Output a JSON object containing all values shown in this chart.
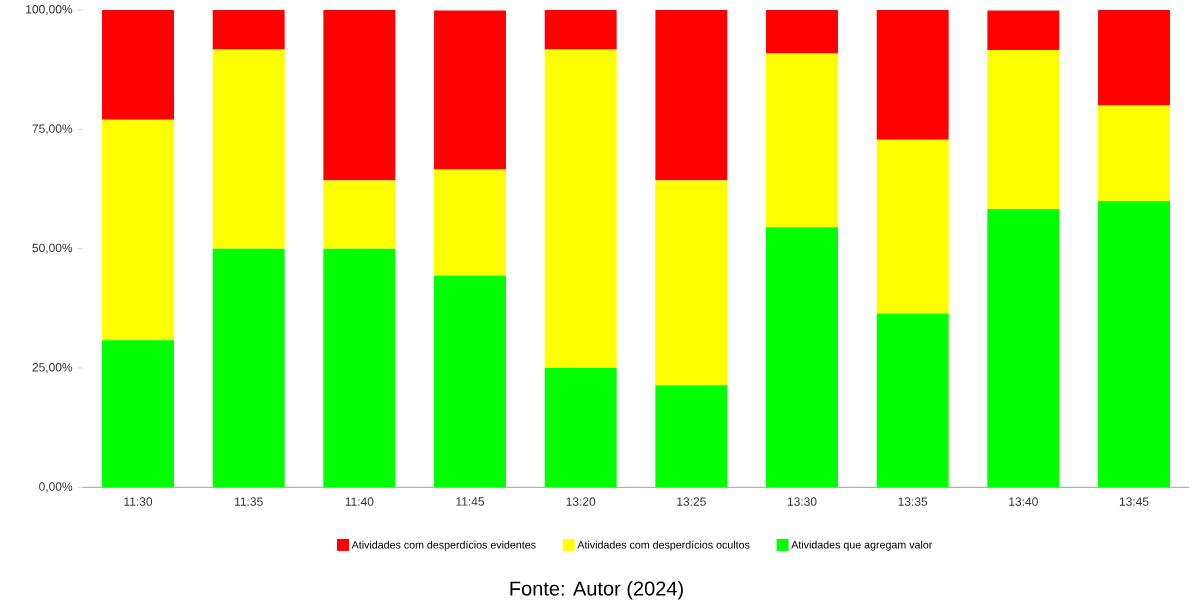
{
  "chart_data": {
    "type": "bar",
    "stacked": true,
    "categories": [
      "11:30",
      "11:35",
      "11:40",
      "11:45",
      "13:20",
      "13:25",
      "13:30",
      "13:35",
      "13:40",
      "13:45"
    ],
    "series": [
      {
        "name": "Atividades que agregam valor",
        "color": "#00ff00",
        "values": [
          30.8,
          50,
          50,
          44.4,
          25,
          21.4,
          54.5,
          36.4,
          58.3,
          60
        ]
      },
      {
        "name": "Atividades com desperdícios ocultos",
        "color": "#ffff00",
        "values": [
          46.2,
          41.7,
          14.3,
          22.2,
          66.7,
          42.9,
          36.4,
          36.4,
          33.3,
          20
        ]
      },
      {
        "name": "Atividades com desperdícios evidentes",
        "color": "#ff0000",
        "values": [
          23.1,
          8.3,
          35.7,
          33.3,
          8.3,
          35.7,
          9.1,
          27.3,
          8.3,
          20
        ]
      }
    ],
    "ylim": [
      0,
      100
    ],
    "yticks": [
      {
        "value": 0,
        "label": "0,00%"
      },
      {
        "value": 25,
        "label": "25,00%"
      },
      {
        "value": 50,
        "label": "50,00%"
      },
      {
        "value": 75,
        "label": "75,00%"
      },
      {
        "value": 100,
        "label": "100,00%"
      }
    ],
    "legend": "bottom",
    "annotations": [
      "Fonte: Autor (2024)"
    ]
  }
}
